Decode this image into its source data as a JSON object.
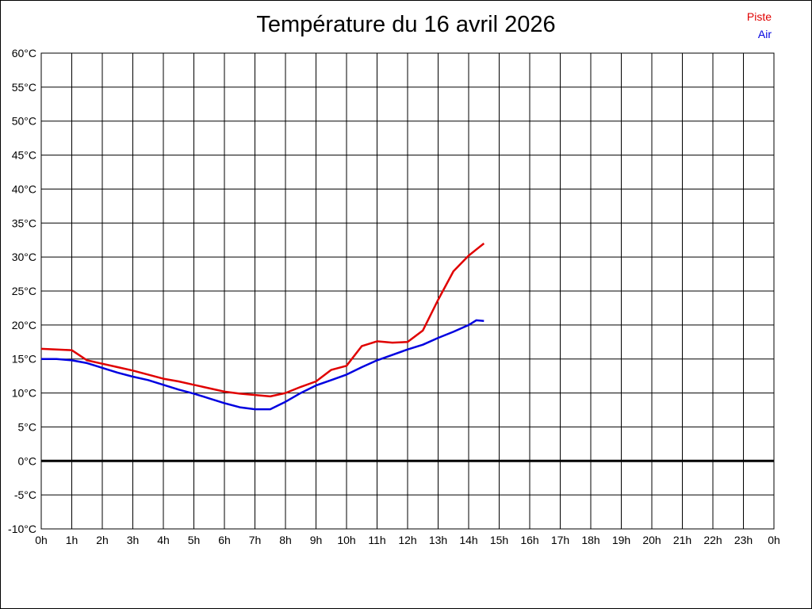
{
  "chart_data": {
    "type": "line",
    "title": "Température du 16 avril 2026",
    "xlabel": "",
    "ylabel": "",
    "xlim": [
      0,
      24
    ],
    "ylim": [
      -10,
      60
    ],
    "grid": true,
    "grid_color": "#000000",
    "zero_line_value": 0,
    "zero_line_color": "#000000",
    "legend_position": "top-right",
    "x_tick_hours": [
      0,
      1,
      2,
      3,
      4,
      5,
      6,
      7,
      8,
      9,
      10,
      11,
      12,
      13,
      14,
      15,
      16,
      17,
      18,
      19,
      20,
      21,
      22,
      23,
      24
    ],
    "x_tick_labels": [
      "0h",
      "1h",
      "2h",
      "3h",
      "4h",
      "5h",
      "6h",
      "7h",
      "8h",
      "9h",
      "10h",
      "11h",
      "12h",
      "13h",
      "14h",
      "15h",
      "16h",
      "17h",
      "18h",
      "19h",
      "20h",
      "21h",
      "22h",
      "23h",
      "0h"
    ],
    "y_tick_values": [
      60,
      55,
      50,
      45,
      40,
      35,
      30,
      25,
      20,
      15,
      10,
      5,
      0,
      -5,
      -10
    ],
    "y_tick_labels": [
      "60°C",
      "55°C",
      "50°C",
      "45°C",
      "40°C",
      "35°C",
      "30°C",
      "25°C",
      "20°C",
      "15°C",
      "10°C",
      "5°C",
      "0°C",
      "-5°C",
      "-10°C"
    ],
    "x_hours": [
      0,
      0.5,
      1,
      1.5,
      2,
      2.5,
      3,
      3.5,
      4,
      4.5,
      5,
      5.5,
      6,
      6.5,
      7,
      7.5,
      8,
      8.5,
      9,
      9.5,
      10,
      10.5,
      11,
      11.5,
      12,
      12.5,
      13,
      13.5,
      14,
      14.25,
      14.5
    ],
    "series": [
      {
        "name": "Piste",
        "color": "#e00000",
        "values": [
          16.5,
          16.4,
          16.3,
          14.8,
          14.3,
          13.8,
          13.3,
          12.7,
          12.1,
          11.7,
          11.2,
          10.7,
          10.2,
          9.9,
          9.7,
          9.5,
          10.0,
          10.9,
          11.7,
          13.4,
          14.0,
          16.9,
          17.6,
          17.4,
          17.5,
          19.2,
          23.7,
          27.9,
          30.2,
          31.1,
          32.0
        ]
      },
      {
        "name": "Air",
        "color": "#0000e0",
        "values": [
          15.0,
          15.0,
          14.8,
          14.4,
          13.7,
          13.0,
          12.4,
          11.9,
          11.2,
          10.5,
          9.9,
          9.2,
          8.5,
          7.9,
          7.6,
          7.6,
          8.7,
          10.0,
          11.1,
          11.9,
          12.7,
          13.8,
          14.8,
          15.6,
          16.4,
          17.1,
          18.1,
          19.0,
          20.0,
          20.7,
          20.6
        ]
      }
    ]
  }
}
